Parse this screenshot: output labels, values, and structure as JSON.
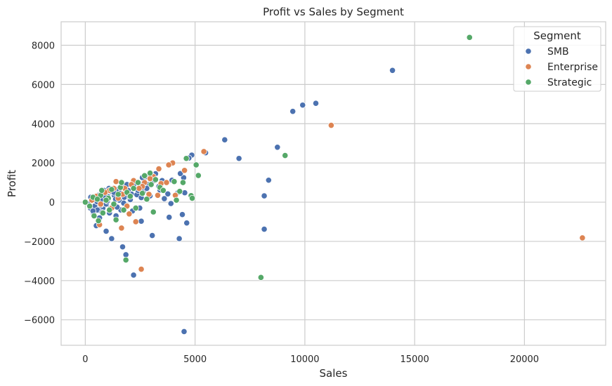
{
  "chart_data": {
    "type": "scatter",
    "title": "Profit vs Sales by Segment",
    "xlabel": "Sales",
    "ylabel": "Profit",
    "xlim": [
      -1100,
      23700
    ],
    "ylim": [
      -7300,
      9200
    ],
    "xticks": [
      0,
      5000,
      10000,
      15000,
      20000
    ],
    "xtick_labels": [
      "0",
      "5000",
      "10000",
      "15000",
      "20000"
    ],
    "yticks": [
      -6000,
      -4000,
      -2000,
      0,
      2000,
      4000,
      6000,
      8000
    ],
    "ytick_labels": [
      "−6000",
      "−4000",
      "−2000",
      "0",
      "2000",
      "4000",
      "6000",
      "8000"
    ],
    "grid": true,
    "legend": {
      "title": "Segment",
      "position": "top-right"
    },
    "series": [
      {
        "name": "SMB",
        "color": "#4c72b0",
        "points": [
          [
            13990,
            6720
          ],
          [
            10500,
            5040
          ],
          [
            9900,
            4950
          ],
          [
            9450,
            4630
          ],
          [
            8750,
            2800
          ],
          [
            8350,
            1120
          ],
          [
            8150,
            320
          ],
          [
            8150,
            -1380
          ],
          [
            7000,
            2230
          ],
          [
            6350,
            3180
          ],
          [
            5480,
            2520
          ],
          [
            4850,
            2400
          ],
          [
            4720,
            2250
          ],
          [
            4480,
            1250
          ],
          [
            4330,
            1460
          ],
          [
            4230,
            500
          ],
          [
            4530,
            480
          ],
          [
            4620,
            -1060
          ],
          [
            4420,
            -630
          ],
          [
            4280,
            -1860
          ],
          [
            3820,
            -770
          ],
          [
            3900,
            -70
          ],
          [
            3760,
            420
          ],
          [
            3950,
            1120
          ],
          [
            3400,
            620
          ],
          [
            3600,
            180
          ],
          [
            3150,
            1100
          ],
          [
            3050,
            -1700
          ],
          [
            2780,
            140
          ],
          [
            2550,
            -970
          ],
          [
            2200,
            -3720
          ],
          [
            1850,
            -2680
          ],
          [
            1700,
            -2280
          ],
          [
            1200,
            -1860
          ],
          [
            950,
            -1480
          ],
          [
            500,
            -1200
          ],
          [
            2480,
            -300
          ],
          [
            2100,
            410
          ],
          [
            1600,
            780
          ],
          [
            4500,
            -6600
          ],
          [
            150,
            -100
          ],
          [
            230,
            -300
          ],
          [
            330,
            100
          ],
          [
            380,
            -600
          ],
          [
            430,
            -200
          ],
          [
            480,
            200
          ],
          [
            560,
            -400
          ],
          [
            650,
            -800
          ],
          [
            720,
            120
          ],
          [
            800,
            -300
          ],
          [
            880,
            400
          ],
          [
            950,
            -100
          ],
          [
            1030,
            280
          ],
          [
            1100,
            -550
          ],
          [
            1180,
            540
          ],
          [
            1250,
            -200
          ],
          [
            1320,
            350
          ],
          [
            1400,
            -700
          ],
          [
            1480,
            650
          ],
          [
            1550,
            100
          ],
          [
            1620,
            -400
          ],
          [
            1700,
            820
          ],
          [
            1780,
            250
          ],
          [
            1860,
            -150
          ],
          [
            1950,
            600
          ],
          [
            2050,
            130
          ],
          [
            2150,
            -450
          ],
          [
            2250,
            700
          ],
          [
            2350,
            380
          ],
          [
            2450,
            980
          ],
          [
            2550,
            230
          ],
          [
            2650,
            560
          ],
          [
            2750,
            1300
          ],
          [
            2850,
            900
          ],
          [
            2950,
            320
          ],
          [
            3050,
            1050
          ],
          [
            3200,
            1450
          ],
          [
            3350,
            800
          ],
          [
            3500,
            1100
          ],
          [
            250,
            250
          ],
          [
            350,
            -450
          ],
          [
            600,
            350
          ],
          [
            700,
            -150
          ],
          [
            850,
            600
          ],
          [
            1000,
            50
          ],
          [
            1150,
            -300
          ],
          [
            1300,
            500
          ],
          [
            1450,
            -250
          ],
          [
            1600,
            450
          ],
          [
            1750,
            -50
          ],
          [
            1900,
            900
          ],
          [
            2000,
            300
          ],
          [
            2200,
            850
          ],
          [
            2400,
            600
          ],
          [
            2600,
            1250
          ],
          [
            2800,
            700
          ],
          [
            3000,
            1400
          ],
          [
            540,
            20
          ],
          [
            760,
            -520
          ],
          [
            900,
            300
          ],
          [
            1080,
            700
          ],
          [
            1380,
            150
          ]
        ]
      },
      {
        "name": "Enterprise",
        "color": "#dd8452",
        "points": [
          [
            22640,
            -1820
          ],
          [
            11200,
            3920
          ],
          [
            5400,
            2580
          ],
          [
            4520,
            1620
          ],
          [
            3980,
            2000
          ],
          [
            3800,
            1900
          ],
          [
            3350,
            1700
          ],
          [
            2550,
            -3420
          ],
          [
            2300,
            -1000
          ],
          [
            2000,
            -600
          ],
          [
            1650,
            -1320
          ],
          [
            650,
            -1150
          ],
          [
            2700,
            1000
          ],
          [
            3100,
            1300
          ],
          [
            3450,
            950
          ],
          [
            2900,
            400
          ],
          [
            2200,
            1100
          ],
          [
            1400,
            1050
          ],
          [
            1800,
            700
          ],
          [
            1100,
            600
          ],
          [
            4100,
            350
          ],
          [
            3700,
            1000
          ],
          [
            2600,
            800
          ],
          [
            1500,
            200
          ],
          [
            1200,
            -300
          ],
          [
            900,
            500
          ],
          [
            700,
            -100
          ],
          [
            300,
            100
          ],
          [
            500,
            300
          ],
          [
            1300,
            700
          ],
          [
            1700,
            400
          ],
          [
            2100,
            900
          ],
          [
            2450,
            700
          ],
          [
            2950,
            1200
          ],
          [
            3300,
            350
          ],
          [
            1900,
            -200
          ]
        ]
      },
      {
        "name": "Strategic",
        "color": "#55a868",
        "points": [
          [
            17500,
            8400
          ],
          [
            9100,
            2380
          ],
          [
            8000,
            -3840
          ],
          [
            5150,
            1360
          ],
          [
            5050,
            1900
          ],
          [
            4820,
            330
          ],
          [
            4870,
            200
          ],
          [
            4600,
            2230
          ],
          [
            4450,
            1000
          ],
          [
            4150,
            100
          ],
          [
            3100,
            -500
          ],
          [
            2950,
            1480
          ],
          [
            2200,
            700
          ],
          [
            1900,
            500
          ],
          [
            1850,
            -2950
          ],
          [
            1400,
            -900
          ],
          [
            1600,
            750
          ],
          [
            1050,
            200
          ],
          [
            800,
            -550
          ],
          [
            600,
            -950
          ],
          [
            400,
            -700
          ],
          [
            0,
            0
          ],
          [
            200,
            -200
          ],
          [
            350,
            250
          ],
          [
            700,
            350
          ],
          [
            1200,
            650
          ],
          [
            1500,
            400
          ],
          [
            1750,
            -400
          ],
          [
            2050,
            300
          ],
          [
            2400,
            1000
          ],
          [
            2700,
            1350
          ],
          [
            2800,
            150
          ],
          [
            3000,
            900
          ],
          [
            3200,
            1150
          ],
          [
            3400,
            750
          ],
          [
            3550,
            600
          ],
          [
            4050,
            1050
          ],
          [
            4300,
            550
          ],
          [
            1300,
            -100
          ],
          [
            950,
            100
          ],
          [
            2600,
            450
          ],
          [
            2300,
            -300
          ],
          [
            1100,
            -400
          ],
          [
            550,
            150
          ],
          [
            750,
            600
          ],
          [
            1650,
            1000
          ]
        ]
      }
    ]
  }
}
